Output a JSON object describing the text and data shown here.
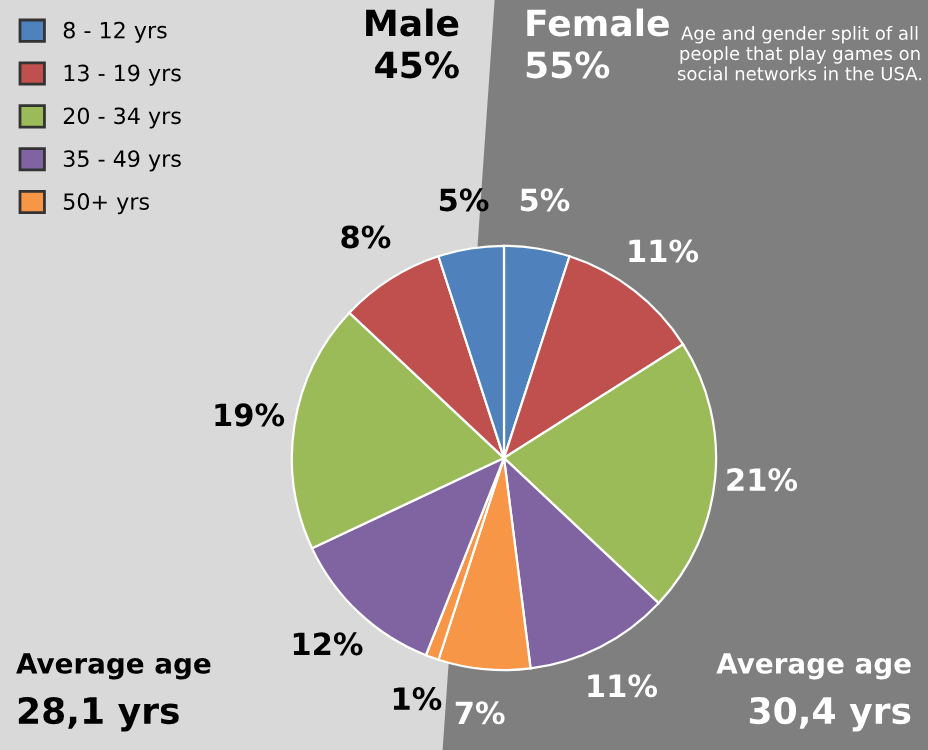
{
  "chart_data": {
    "type": "pie",
    "title": "Age and gender split of all people that play games on social networks in the USA.",
    "categories": [
      "8 - 12 yrs",
      "13 - 19 yrs",
      "20 - 34 yrs",
      "35 - 49 yrs",
      "50+ yrs",
      null,
      null,
      null,
      null,
      null
    ],
    "values": [
      5,
      11,
      21,
      11,
      7,
      1,
      12,
      19,
      8,
      5
    ],
    "value_labels": [
      "5%",
      "11%",
      "21%",
      "11%",
      "7%",
      "1%",
      "12%",
      "19%",
      "8%",
      "5%"
    ],
    "colors": [
      "#4f81bd",
      "#c0504d",
      "#9bbb59",
      "#8064a2",
      "#f79646",
      "#f79646",
      "#8064a2",
      "#9bbb59",
      "#c0504d",
      "#4f81bd"
    ],
    "annotations": [
      "Male",
      "45%",
      "Female",
      "55%",
      "Average age",
      "28,1 yrs",
      "Average age",
      "30,4 yrs"
    ],
    "legend": "top left"
  }
}
